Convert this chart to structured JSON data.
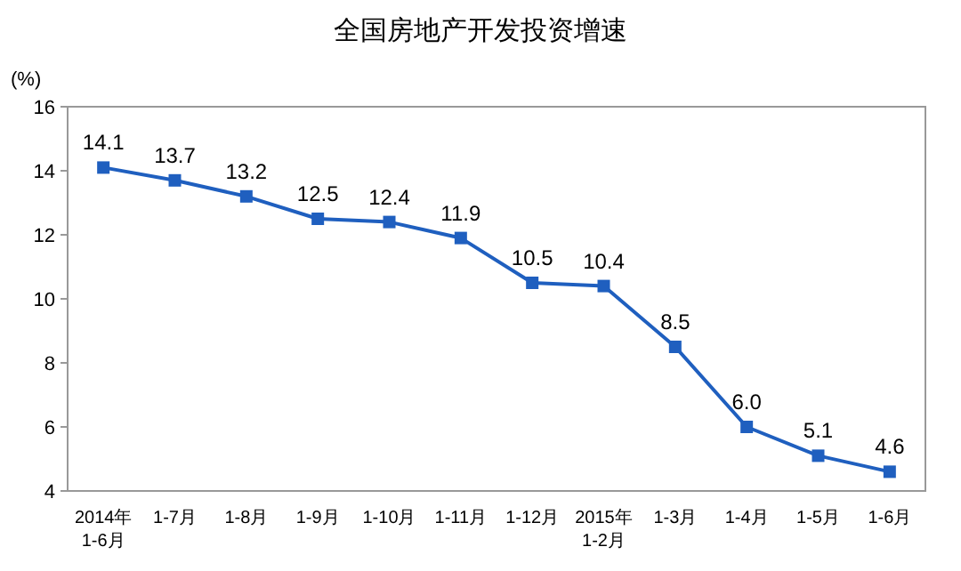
{
  "chart_data": {
    "type": "line",
    "title": "全国房地产开发投资增速",
    "ylabel": "(%)",
    "categories": [
      "2014年\n1-6月",
      "1-7月",
      "1-8月",
      "1-9月",
      "1-10月",
      "1-11月",
      "1-12月",
      "2015年\n1-2月",
      "1-3月",
      "1-4月",
      "1-5月",
      "1-6月"
    ],
    "series": [
      {
        "color": "#1f5fbf",
        "values": [
          14.1,
          13.7,
          13.2,
          12.5,
          12.4,
          11.9,
          10.5,
          10.4,
          8.5,
          6.0,
          5.1,
          4.6
        ],
        "value_labels": [
          "14.1",
          "13.7",
          "13.2",
          "12.5",
          "12.4",
          "11.9",
          "10.5",
          "10.4",
          "8.5",
          "6.0",
          "5.1",
          "4.6"
        ]
      }
    ],
    "ylim": [
      4,
      16
    ],
    "yticks": [
      4,
      6,
      8,
      10,
      12,
      14,
      16
    ],
    "marker": "square",
    "line_style": "solid",
    "grid": false
  }
}
